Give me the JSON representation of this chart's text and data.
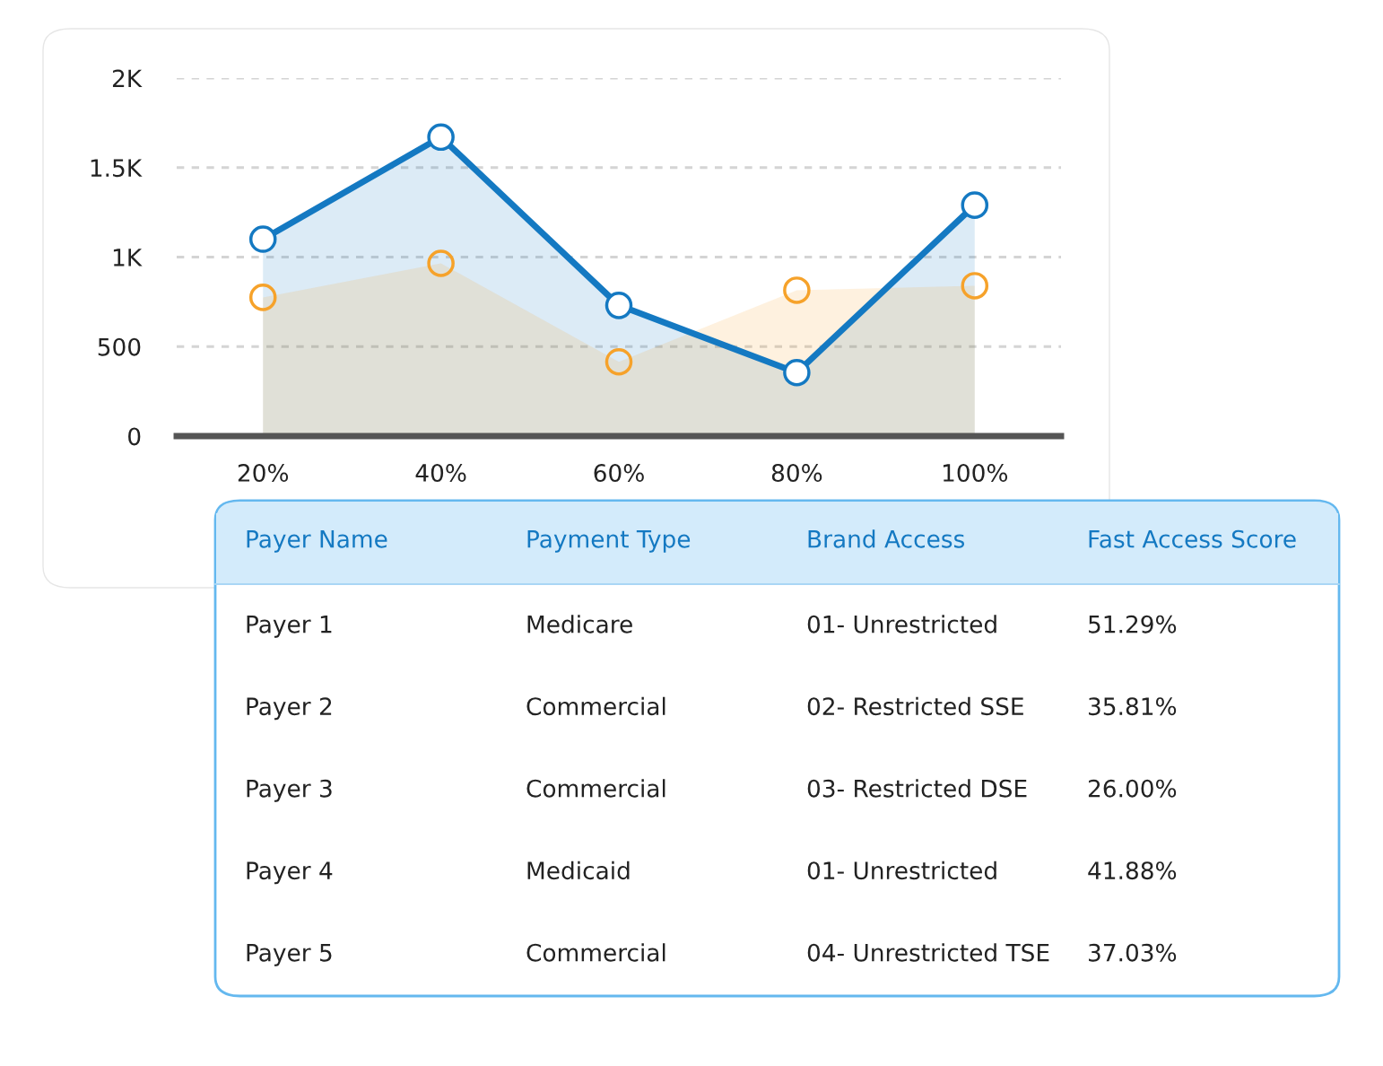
{
  "chart_data": [
    {
      "type": "line",
      "categories": [
        "20%",
        "40%",
        "60%",
        "80%",
        "100%"
      ],
      "series": [
        {
          "type": "area",
          "color": "#1479c2",
          "line_style": "solid",
          "values": [
            1100,
            1670,
            730,
            355,
            1290
          ]
        },
        {
          "type": "area",
          "color": "#f6a22a",
          "values": [
            775,
            965,
            415,
            815,
            840
          ]
        }
      ],
      "ylim": [
        0,
        2000
      ],
      "yticks": [
        0,
        500,
        {
          "value": 1000,
          "label": "1K"
        },
        {
          "value": 1500,
          "label": "1.5K"
        },
        {
          "value": 2000,
          "label": "2K"
        }
      ],
      "grid": "y",
      "marker": "circle"
    },
    {
      "type": "other",
      "categories": [
        "Payer Name",
        "Payment Type",
        "Brand Access",
        "Fast Access Score"
      ],
      "cell_labels": [
        [
          "Payer 1",
          "Medicare",
          "01- Unrestricted",
          "51.29%"
        ],
        [
          "Payer 2",
          "Commercial",
          "02- Restricted SSE",
          "35.81%"
        ],
        [
          "Payer 3",
          "Commercial",
          "03- Restricted DSE",
          "26.00%"
        ],
        [
          "Payer 4",
          "Medicaid",
          "01- Unrestricted",
          "41.88%"
        ],
        [
          "Payer 5",
          "Commercial",
          "04- Unrestricted TSE",
          "37.03%"
        ]
      ]
    }
  ]
}
